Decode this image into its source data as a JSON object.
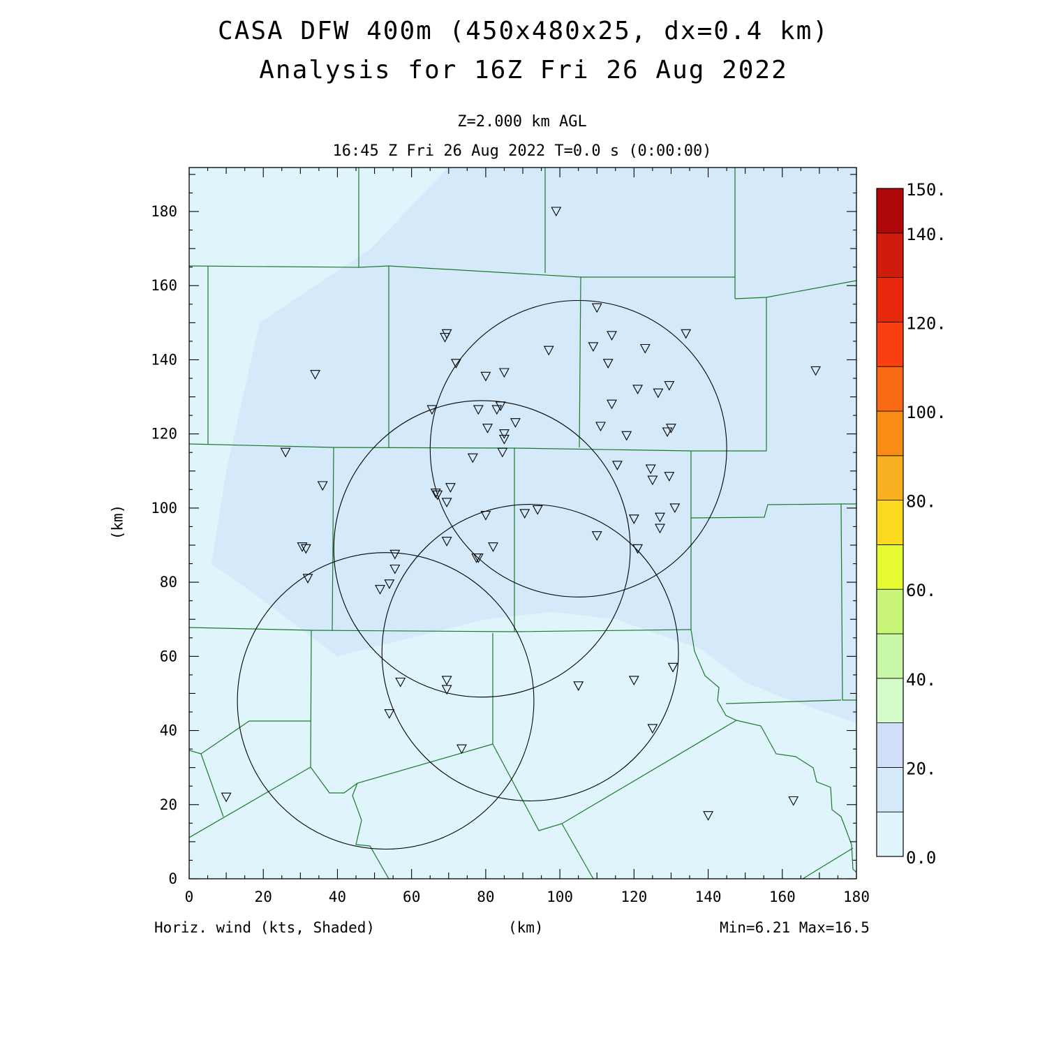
{
  "title_line1": "CASA DFW 400m (450x480x25, dx=0.4 km)",
  "title_line2": "Analysis for 16Z Fri 26 Aug 2022",
  "level": "Z=2.000 km AGL",
  "valid_time": "16:45 Z Fri 26 Aug 2022    T=0.0 s (0:00:00)",
  "x_axis_label": "(km)",
  "y_axis_label": "(km)",
  "field_label": "Horiz. wind (kts, Shaded)",
  "min_max": "Min=6.21 Max=16.5",
  "x_ticks": [
    0,
    20,
    40,
    60,
    80,
    100,
    120,
    140,
    160,
    180
  ],
  "y_ticks": [
    0,
    20,
    40,
    60,
    80,
    100,
    120,
    140,
    160,
    180
  ],
  "colorbar": {
    "labels": [
      "0.0",
      "20.",
      "40.",
      "60.",
      "80.",
      "100.",
      "120.",
      "140.",
      "150."
    ],
    "label_values": [
      0,
      20,
      40,
      60,
      80,
      100,
      120,
      140,
      150
    ],
    "bins": [
      {
        "from": 0,
        "to": 10,
        "color": "#e0f4fb"
      },
      {
        "from": 10,
        "to": 20,
        "color": "#d4eafa"
      },
      {
        "from": 20,
        "to": 30,
        "color": "#d2defa"
      },
      {
        "from": 30,
        "to": 40,
        "color": "#d6fccc"
      },
      {
        "from": 40,
        "to": 50,
        "color": "#c8f7a8"
      },
      {
        "from": 50,
        "to": 60,
        "color": "#c8f578"
      },
      {
        "from": 60,
        "to": 70,
        "color": "#e6fa32"
      },
      {
        "from": 70,
        "to": 80,
        "color": "#fada1e"
      },
      {
        "from": 80,
        "to": 90,
        "color": "#f8b020"
      },
      {
        "from": 90,
        "to": 100,
        "color": "#f88c14"
      },
      {
        "from": 100,
        "to": 110,
        "color": "#f86a14"
      },
      {
        "from": 110,
        "to": 120,
        "color": "#fa4010"
      },
      {
        "from": 120,
        "to": 130,
        "color": "#e8280c"
      },
      {
        "from": 130,
        "to": 140,
        "color": "#d01c0c"
      },
      {
        "from": 140,
        "to": 150,
        "color": "#b00808"
      }
    ]
  },
  "chart_data": {
    "type": "heatmap",
    "domain_x_km": [
      0,
      180
    ],
    "domain_y_km": [
      0,
      192
    ],
    "field": "horizontal wind speed (kts)",
    "min": 6.21,
    "max": 16.5,
    "shading": {
      "background_color": "#e0f4fb",
      "region_10_20_color": "#d4eafa",
      "region_10_20_outline_km": [
        [
          70,
          192
        ],
        [
          49,
          170
        ],
        [
          19,
          150
        ],
        [
          10,
          110
        ],
        [
          6,
          85
        ],
        [
          16,
          78
        ],
        [
          40,
          60
        ],
        [
          80,
          70
        ],
        [
          98,
          72
        ],
        [
          115,
          70
        ],
        [
          138,
          62
        ],
        [
          150,
          53
        ],
        [
          160,
          49
        ],
        [
          180,
          42
        ],
        [
          180,
          192
        ]
      ]
    },
    "radar_range_circles_km": [
      {
        "center": [
          105,
          116
        ],
        "radius": 40
      },
      {
        "center": [
          79,
          89
        ],
        "radius": 40
      },
      {
        "center": [
          92,
          61
        ],
        "radius": 40
      },
      {
        "center": [
          53,
          48
        ],
        "radius": 40
      }
    ],
    "station_markers_km": [
      [
        99,
        180
      ],
      [
        110,
        154
      ],
      [
        69.5,
        147
      ],
      [
        69,
        146
      ],
      [
        34,
        136
      ],
      [
        72,
        139
      ],
      [
        97,
        142.5
      ],
      [
        109,
        143.5
      ],
      [
        114,
        146.5
      ],
      [
        123,
        143
      ],
      [
        134,
        147
      ],
      [
        113,
        139
      ],
      [
        80,
        135.5
      ],
      [
        85,
        136.5
      ],
      [
        169,
        137
      ],
      [
        121,
        132
      ],
      [
        126.5,
        131
      ],
      [
        129.5,
        133
      ],
      [
        114,
        128
      ],
      [
        65.5,
        126.5
      ],
      [
        78,
        126.5
      ],
      [
        83,
        126.5
      ],
      [
        84,
        127.5
      ],
      [
        88,
        123
      ],
      [
        80.5,
        121.5
      ],
      [
        111,
        122
      ],
      [
        118,
        119.5
      ],
      [
        129,
        120.5
      ],
      [
        130,
        121.5
      ],
      [
        85,
        120
      ],
      [
        85,
        118.5
      ],
      [
        84.5,
        115
      ],
      [
        76.5,
        113.5
      ],
      [
        26,
        115
      ],
      [
        115.5,
        111.5
      ],
      [
        124.5,
        110.5
      ],
      [
        125,
        107.5
      ],
      [
        129.5,
        108.5
      ],
      [
        36,
        106
      ],
      [
        70.5,
        105.5
      ],
      [
        66.5,
        104
      ],
      [
        67,
        103.5
      ],
      [
        69.5,
        101.5
      ],
      [
        131,
        100
      ],
      [
        90.5,
        98.5
      ],
      [
        94,
        99.5
      ],
      [
        80,
        98
      ],
      [
        120,
        97
      ],
      [
        127,
        97.5
      ],
      [
        127,
        94.5
      ],
      [
        110,
        92.5
      ],
      [
        69.5,
        91
      ],
      [
        30.5,
        89.5
      ],
      [
        31.5,
        89
      ],
      [
        82,
        89.5
      ],
      [
        121,
        89
      ],
      [
        55.5,
        87.5
      ],
      [
        77.5,
        86.5
      ],
      [
        78,
        86.5
      ],
      [
        55.5,
        83.5
      ],
      [
        32,
        81
      ],
      [
        51.5,
        78
      ],
      [
        54,
        79.5
      ],
      [
        130.5,
        57
      ],
      [
        57,
        53
      ],
      [
        69.5,
        53.5
      ],
      [
        69.5,
        51
      ],
      [
        105,
        52
      ],
      [
        120,
        53.5
      ],
      [
        54,
        44.5
      ],
      [
        125,
        40.5
      ],
      [
        73.5,
        35
      ],
      [
        10,
        22
      ],
      [
        163,
        21
      ],
      [
        140,
        17
      ]
    ],
    "county_boundaries": "green polylines"
  }
}
